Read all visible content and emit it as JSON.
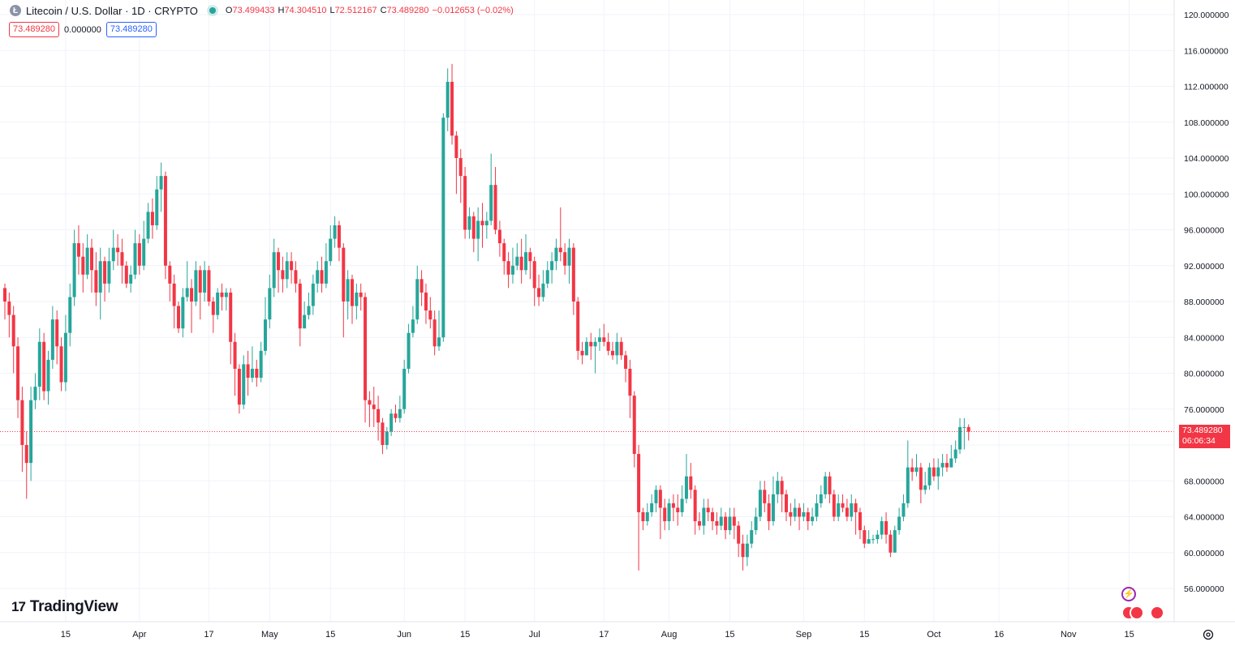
{
  "header": {
    "symbol_logo": "Ł",
    "symbol_title": "Litecoin / U.S. Dollar · 1D · CRYPTO",
    "ohlc": [
      {
        "k": "O",
        "v": "73.499433"
      },
      {
        "k": "H",
        "v": "74.304510"
      },
      {
        "k": "L",
        "v": "72.512167"
      },
      {
        "k": "C",
        "v": "73.489280"
      },
      {
        "k": "",
        "v": "−0.012653 (−0.02%)"
      }
    ]
  },
  "badges": {
    "sell": "73.489280",
    "spread": "0.000000",
    "buy": "73.489280"
  },
  "price_tag": {
    "price": "73.489280",
    "countdown": "06:06:34"
  },
  "brand": {
    "mark": "17",
    "name": "TradingView"
  },
  "icons": {
    "settings": "gear-icon",
    "flash": "lightning-icon",
    "events": "us-flag-icon"
  },
  "colors": {
    "up": "#26a69a",
    "down": "#f23645",
    "grid": "#f0f3fa",
    "text": "#131722",
    "axis_text": "#131722"
  },
  "chart_data": {
    "type": "candlestick",
    "title": "Litecoin / U.S. Dollar · 1D · CRYPTO",
    "ylim": [
      54,
      121
    ],
    "y_ticks": [
      "56.000000",
      "60.000000",
      "64.000000",
      "68.000000",
      "72.000000",
      "76.000000",
      "80.000000",
      "84.000000",
      "88.000000",
      "92.000000",
      "96.000000",
      "100.000000",
      "104.000000",
      "108.000000",
      "112.000000",
      "116.000000",
      "120.000000"
    ],
    "y_tick_values": [
      56,
      60,
      64,
      68,
      72,
      76,
      80,
      84,
      88,
      92,
      96,
      100,
      104,
      108,
      112,
      116,
      120
    ],
    "x_ticks": [
      {
        "label": "15",
        "day": 14
      },
      {
        "label": "Apr",
        "day": 31
      },
      {
        "label": "17",
        "day": 47
      },
      {
        "label": "May",
        "day": 61
      },
      {
        "label": "15",
        "day": 75
      },
      {
        "label": "Jun",
        "day": 92
      },
      {
        "label": "15",
        "day": 106
      },
      {
        "label": "Jul",
        "day": 122
      },
      {
        "label": "17",
        "day": 138
      },
      {
        "label": "Aug",
        "day": 153
      },
      {
        "label": "15",
        "day": 167
      },
      {
        "label": "Sep",
        "day": 184
      },
      {
        "label": "15",
        "day": 198
      },
      {
        "label": "Oct",
        "day": 214
      },
      {
        "label": "16",
        "day": 229
      },
      {
        "label": "Nov",
        "day": 245
      },
      {
        "label": "15",
        "day": 259
      }
    ],
    "last_price": 73.48928,
    "candles": [
      [
        89.5,
        88.0,
        90.0,
        86.0
      ],
      [
        88.0,
        86.5,
        89.0,
        84.0
      ],
      [
        86.5,
        83.0,
        87.5,
        80.0
      ],
      [
        83.0,
        77.0,
        84.0,
        75.0
      ],
      [
        77.0,
        72.0,
        78.5,
        69.0
      ],
      [
        72.0,
        70.0,
        73.5,
        66.0
      ],
      [
        70.0,
        77.0,
        78.5,
        68.0
      ],
      [
        77.0,
        78.5,
        80.0,
        76.0
      ],
      [
        78.5,
        83.5,
        85.0,
        77.0
      ],
      [
        83.5,
        78.0,
        84.5,
        77.0
      ],
      [
        78.0,
        81.5,
        82.5,
        76.5
      ],
      [
        81.5,
        86.0,
        87.5,
        80.5
      ],
      [
        86.0,
        83.0,
        87.0,
        81.0
      ],
      [
        83.0,
        79.0,
        84.0,
        78.0
      ],
      [
        79.0,
        84.5,
        86.5,
        78.0
      ],
      [
        84.5,
        88.5,
        90.0,
        83.0
      ],
      [
        88.5,
        94.5,
        96.0,
        87.5
      ],
      [
        94.5,
        93.0,
        96.5,
        91.0
      ],
      [
        93.0,
        91.0,
        94.5,
        89.0
      ],
      [
        91.0,
        94.0,
        95.5,
        90.5
      ],
      [
        94.0,
        91.5,
        95.0,
        89.0
      ],
      [
        91.5,
        89.0,
        93.5,
        87.5
      ],
      [
        89.0,
        92.5,
        94.0,
        86.0
      ],
      [
        92.5,
        90.0,
        93.0,
        88.0
      ],
      [
        90.0,
        92.5,
        94.0,
        89.0
      ],
      [
        92.5,
        94.0,
        96.0,
        91.5
      ],
      [
        94.0,
        93.5,
        95.5,
        92.0
      ],
      [
        93.5,
        92.0,
        95.0,
        90.0
      ],
      [
        92.0,
        90.0,
        92.5,
        89.5
      ],
      [
        90.0,
        91.0,
        92.0,
        89.0
      ],
      [
        91.0,
        94.5,
        96.0,
        90.5
      ],
      [
        94.5,
        92.0,
        95.5,
        91.0
      ],
      [
        92.0,
        95.0,
        97.0,
        91.5
      ],
      [
        95.0,
        98.0,
        99.0,
        94.5
      ],
      [
        98.0,
        96.5,
        99.5,
        95.0
      ],
      [
        96.5,
        100.5,
        102.0,
        96.0
      ],
      [
        100.5,
        102.0,
        103.5,
        98.0
      ],
      [
        102.0,
        92.0,
        102.5,
        90.5
      ],
      [
        92.0,
        90.0,
        92.5,
        88.0
      ],
      [
        90.0,
        87.5,
        91.0,
        85.0
      ],
      [
        87.5,
        85.0,
        88.0,
        84.5
      ],
      [
        85.0,
        88.5,
        89.5,
        84.0
      ],
      [
        88.5,
        89.5,
        92.5,
        88.0
      ],
      [
        89.5,
        88.0,
        90.5,
        84.5
      ],
      [
        88.0,
        91.5,
        92.5,
        87.5
      ],
      [
        91.5,
        89.0,
        92.0,
        86.0
      ],
      [
        89.0,
        91.5,
        92.5,
        88.0
      ],
      [
        91.5,
        88.0,
        92.0,
        87.5
      ],
      [
        88.0,
        86.5,
        88.5,
        84.5
      ],
      [
        86.5,
        89.0,
        89.5,
        86.0
      ],
      [
        89.0,
        88.5,
        90.0,
        87.0
      ],
      [
        88.5,
        89.0,
        89.5,
        87.0
      ],
      [
        89.0,
        83.5,
        89.5,
        81.0
      ],
      [
        83.5,
        80.5,
        84.5,
        77.5
      ],
      [
        80.5,
        76.5,
        81.0,
        75.5
      ],
      [
        76.5,
        81.0,
        82.0,
        76.0
      ],
      [
        81.0,
        79.5,
        82.5,
        77.5
      ],
      [
        79.5,
        80.5,
        83.0,
        79.0
      ],
      [
        80.5,
        79.5,
        81.5,
        78.5
      ],
      [
        79.5,
        82.5,
        83.5,
        79.0
      ],
      [
        82.5,
        86.0,
        88.5,
        82.0
      ],
      [
        86.0,
        89.5,
        91.0,
        85.0
      ],
      [
        89.5,
        93.5,
        95.0,
        88.5
      ],
      [
        93.5,
        91.5,
        94.0,
        89.0
      ],
      [
        91.5,
        90.5,
        93.0,
        89.0
      ],
      [
        90.5,
        92.5,
        93.5,
        89.5
      ],
      [
        92.5,
        91.5,
        93.5,
        90.0
      ],
      [
        91.5,
        90.0,
        92.5,
        89.0
      ],
      [
        90.0,
        85.0,
        90.5,
        83.0
      ],
      [
        85.0,
        86.5,
        88.0,
        85.0
      ],
      [
        86.5,
        87.5,
        89.0,
        86.0
      ],
      [
        87.5,
        90.0,
        91.0,
        86.5
      ],
      [
        90.0,
        91.5,
        92.5,
        89.0
      ],
      [
        91.5,
        90.0,
        93.0,
        89.0
      ],
      [
        90.0,
        92.5,
        94.5,
        89.5
      ],
      [
        92.5,
        95.0,
        96.5,
        92.0
      ],
      [
        95.0,
        96.5,
        97.5,
        94.0
      ],
      [
        96.5,
        94.0,
        97.0,
        92.5
      ],
      [
        94.0,
        88.0,
        94.5,
        84.0
      ],
      [
        88.0,
        90.5,
        91.5,
        86.0
      ],
      [
        90.5,
        87.5,
        91.0,
        85.5
      ],
      [
        87.5,
        89.0,
        90.0,
        86.0
      ],
      [
        89.0,
        88.5,
        90.0,
        87.0
      ],
      [
        88.5,
        77.0,
        89.0,
        74.5
      ],
      [
        77.0,
        76.5,
        78.0,
        74.0
      ],
      [
        76.5,
        76.0,
        78.5,
        74.0
      ],
      [
        76.0,
        74.5,
        77.5,
        72.5
      ],
      [
        74.5,
        72.0,
        75.0,
        71.0
      ],
      [
        72.0,
        73.5,
        74.0,
        71.5
      ],
      [
        73.5,
        75.5,
        76.0,
        73.0
      ],
      [
        75.5,
        75.0,
        76.5,
        74.5
      ],
      [
        75.0,
        76.0,
        77.5,
        74.5
      ],
      [
        76.0,
        80.5,
        81.5,
        75.5
      ],
      [
        80.5,
        84.5,
        85.5,
        80.0
      ],
      [
        84.5,
        86.0,
        87.5,
        84.0
      ],
      [
        86.0,
        90.5,
        92.0,
        85.5
      ],
      [
        90.5,
        89.0,
        91.5,
        87.5
      ],
      [
        89.0,
        87.0,
        90.0,
        85.5
      ],
      [
        87.0,
        86.0,
        88.5,
        85.0
      ],
      [
        86.0,
        83.0,
        87.0,
        82.0
      ],
      [
        83.0,
        84.0,
        87.0,
        82.5
      ],
      [
        84.0,
        108.5,
        109.0,
        83.5
      ],
      [
        108.5,
        112.5,
        114.0,
        107.0
      ],
      [
        112.5,
        106.5,
        114.5,
        105.5
      ],
      [
        106.5,
        104.0,
        107.0,
        100.0
      ],
      [
        104.0,
        102.0,
        105.0,
        99.0
      ],
      [
        102.0,
        96.0,
        103.0,
        95.0
      ],
      [
        96.0,
        97.5,
        98.5,
        95.0
      ],
      [
        97.5,
        95.0,
        98.0,
        93.5
      ],
      [
        95.0,
        97.0,
        98.5,
        92.5
      ],
      [
        97.0,
        96.5,
        99.0,
        94.0
      ],
      [
        96.5,
        97.0,
        98.0,
        95.0
      ],
      [
        97.0,
        101.0,
        104.5,
        96.5
      ],
      [
        101.0,
        96.0,
        103.0,
        95.5
      ],
      [
        96.0,
        94.5,
        97.0,
        93.0
      ],
      [
        94.5,
        92.5,
        95.0,
        91.0
      ],
      [
        92.5,
        91.0,
        93.5,
        89.5
      ],
      [
        91.0,
        92.0,
        94.0,
        90.0
      ],
      [
        92.0,
        93.0,
        94.5,
        91.5
      ],
      [
        93.0,
        91.5,
        95.0,
        90.0
      ],
      [
        91.5,
        93.5,
        95.5,
        91.0
      ],
      [
        93.5,
        92.5,
        94.0,
        90.5
      ],
      [
        92.5,
        89.5,
        93.0,
        87.5
      ],
      [
        89.5,
        88.5,
        91.0,
        87.5
      ],
      [
        88.5,
        90.0,
        91.5,
        88.0
      ],
      [
        90.0,
        91.5,
        92.5,
        89.5
      ],
      [
        91.5,
        92.5,
        93.5,
        90.0
      ],
      [
        92.5,
        94.0,
        95.0,
        91.5
      ],
      [
        94.0,
        93.5,
        98.5,
        92.5
      ],
      [
        93.5,
        92.0,
        94.5,
        91.0
      ],
      [
        92.0,
        94.0,
        95.0,
        90.0
      ],
      [
        94.0,
        88.0,
        94.5,
        86.5
      ],
      [
        88.0,
        82.5,
        88.5,
        81.5
      ],
      [
        82.5,
        82.0,
        83.5,
        81.0
      ],
      [
        82.0,
        83.5,
        84.0,
        82.0
      ],
      [
        83.5,
        83.0,
        84.5,
        81.5
      ],
      [
        83.0,
        83.5,
        84.0,
        80.0
      ],
      [
        83.5,
        84.0,
        85.0,
        82.5
      ],
      [
        84.0,
        83.5,
        85.5,
        83.0
      ],
      [
        83.5,
        82.5,
        84.5,
        82.0
      ],
      [
        82.5,
        82.0,
        83.5,
        81.5
      ],
      [
        82.0,
        83.5,
        84.5,
        81.0
      ],
      [
        83.5,
        82.0,
        84.0,
        81.5
      ],
      [
        82.0,
        80.5,
        82.5,
        79.0
      ],
      [
        80.5,
        77.5,
        81.5,
        75.0
      ],
      [
        77.5,
        71.0,
        78.0,
        69.5
      ],
      [
        71.0,
        64.5,
        72.0,
        58.0
      ],
      [
        64.5,
        63.5,
        65.0,
        62.5
      ],
      [
        63.5,
        64.5,
        65.5,
        63.0
      ],
      [
        64.5,
        65.5,
        66.5,
        64.0
      ],
      [
        65.5,
        67.0,
        67.5,
        64.5
      ],
      [
        67.0,
        65.0,
        67.5,
        61.5
      ],
      [
        65.0,
        63.5,
        66.0,
        62.5
      ],
      [
        63.5,
        65.5,
        66.0,
        62.5
      ],
      [
        65.5,
        65.0,
        66.5,
        63.5
      ],
      [
        65.0,
        64.5,
        66.5,
        63.0
      ],
      [
        64.5,
        66.0,
        67.5,
        64.0
      ],
      [
        66.0,
        68.5,
        71.0,
        65.5
      ],
      [
        68.5,
        67.0,
        70.0,
        66.0
      ],
      [
        67.0,
        63.5,
        67.5,
        62.0
      ],
      [
        63.5,
        63.0,
        64.5,
        62.5
      ],
      [
        63.0,
        65.0,
        66.0,
        62.0
      ],
      [
        65.0,
        64.5,
        66.0,
        63.5
      ],
      [
        64.5,
        63.5,
        65.0,
        62.5
      ],
      [
        63.5,
        63.0,
        64.5,
        62.0
      ],
      [
        63.0,
        64.0,
        65.0,
        62.5
      ],
      [
        64.0,
        62.5,
        64.5,
        61.5
      ],
      [
        62.5,
        64.0,
        65.0,
        62.0
      ],
      [
        64.0,
        63.0,
        65.0,
        61.5
      ],
      [
        63.0,
        61.0,
        63.5,
        59.5
      ],
      [
        61.0,
        59.5,
        62.0,
        58.0
      ],
      [
        59.5,
        61.0,
        62.0,
        58.5
      ],
      [
        61.0,
        62.5,
        63.5,
        60.5
      ],
      [
        62.5,
        64.0,
        65.0,
        62.0
      ],
      [
        64.0,
        67.0,
        68.0,
        63.5
      ],
      [
        67.0,
        65.5,
        68.0,
        64.5
      ],
      [
        65.5,
        63.5,
        66.5,
        62.5
      ],
      [
        63.5,
        66.5,
        68.5,
        63.0
      ],
      [
        66.5,
        68.0,
        69.0,
        65.5
      ],
      [
        68.0,
        66.5,
        68.5,
        64.5
      ],
      [
        66.5,
        64.5,
        67.0,
        63.5
      ],
      [
        64.5,
        64.0,
        65.5,
        63.0
      ],
      [
        64.0,
        65.0,
        66.0,
        63.5
      ],
      [
        65.0,
        64.0,
        65.5,
        62.5
      ],
      [
        64.0,
        64.5,
        65.5,
        63.5
      ],
      [
        64.5,
        63.5,
        65.0,
        62.5
      ],
      [
        63.5,
        64.0,
        65.0,
        63.0
      ],
      [
        64.0,
        65.5,
        66.5,
        63.5
      ],
      [
        65.5,
        66.5,
        67.5,
        65.0
      ],
      [
        66.5,
        68.5,
        69.0,
        66.0
      ],
      [
        68.5,
        66.5,
        69.0,
        65.5
      ],
      [
        66.5,
        64.0,
        67.0,
        63.5
      ],
      [
        64.0,
        65.5,
        66.5,
        63.5
      ],
      [
        65.5,
        65.0,
        66.5,
        64.5
      ],
      [
        65.0,
        64.0,
        66.0,
        63.5
      ],
      [
        64.0,
        65.5,
        66.5,
        63.5
      ],
      [
        65.5,
        64.5,
        66.0,
        62.0
      ],
      [
        64.5,
        62.5,
        65.0,
        61.5
      ],
      [
        62.5,
        61.0,
        63.0,
        60.5
      ],
      [
        61.0,
        61.5,
        62.5,
        61.0
      ],
      [
        61.5,
        61.5,
        62.0,
        61.0
      ],
      [
        61.5,
        62.0,
        62.5,
        61.0
      ],
      [
        62.0,
        63.5,
        64.0,
        61.5
      ],
      [
        63.5,
        62.0,
        64.5,
        61.0
      ],
      [
        62.0,
        60.0,
        62.5,
        59.5
      ],
      [
        60.0,
        62.5,
        63.0,
        60.0
      ],
      [
        62.5,
        64.0,
        65.0,
        62.0
      ],
      [
        64.0,
        65.5,
        66.5,
        63.5
      ],
      [
        65.5,
        69.5,
        72.5,
        65.0
      ],
      [
        69.5,
        69.0,
        70.5,
        68.0
      ],
      [
        69.0,
        69.5,
        71.0,
        68.5
      ],
      [
        69.5,
        67.0,
        70.0,
        65.5
      ],
      [
        67.0,
        67.5,
        69.0,
        66.5
      ],
      [
        67.5,
        69.5,
        70.0,
        67.0
      ],
      [
        69.5,
        68.5,
        70.5,
        68.0
      ],
      [
        68.5,
        69.5,
        70.5,
        67.0
      ],
      [
        69.5,
        70.0,
        71.0,
        68.5
      ],
      [
        70.0,
        69.5,
        71.0,
        69.0
      ],
      [
        69.5,
        70.5,
        72.0,
        69.5
      ],
      [
        70.5,
        71.5,
        72.5,
        70.0
      ],
      [
        71.5,
        74.0,
        75.0,
        71.0
      ],
      [
        74.0,
        74.0,
        75.0,
        71.5
      ],
      [
        74.0,
        73.49,
        74.3,
        72.5
      ]
    ]
  }
}
